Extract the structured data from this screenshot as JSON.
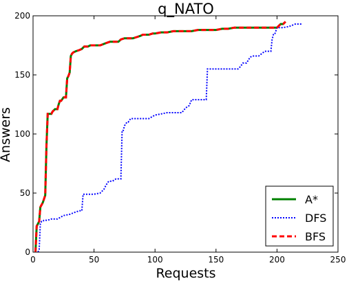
{
  "chart_data": {
    "type": "line",
    "title": "q_NATO",
    "xlabel": "Requests",
    "ylabel": "Answers",
    "xlim": [
      0,
      250
    ],
    "ylim": [
      0,
      200
    ],
    "xticks": [
      "0",
      "50",
      "100",
      "150",
      "200",
      "250"
    ],
    "yticks": [
      "0",
      "50",
      "100",
      "150",
      "200"
    ],
    "grid": false,
    "legend_position": "bottom-right",
    "series": [
      {
        "name": "A*",
        "color": "#008000",
        "style": "solid",
        "x": [
          2,
          3,
          5,
          6,
          8,
          10,
          11,
          12,
          13,
          15,
          16,
          18,
          20,
          21,
          22,
          23,
          25,
          27,
          28,
          29,
          30,
          31,
          32,
          33,
          35,
          38,
          40,
          42,
          45,
          47,
          50,
          55,
          60,
          63,
          65,
          68,
          70,
          72,
          75,
          78,
          80,
          82,
          85,
          88,
          90,
          92,
          95,
          98,
          100,
          105,
          110,
          115,
          120,
          125,
          130,
          135,
          140,
          145,
          150,
          155,
          160,
          165,
          170,
          175,
          180,
          185,
          190,
          195,
          200,
          203,
          205,
          207
        ],
        "y": [
          0,
          22,
          26,
          38,
          42,
          48,
          90,
          117,
          117,
          117,
          119,
          121,
          121,
          125,
          128,
          128,
          131,
          131,
          147,
          149,
          152,
          166,
          168,
          169,
          170,
          171,
          172,
          174,
          174,
          175,
          175,
          175,
          177,
          178,
          178,
          178,
          178,
          180,
          181,
          181,
          181,
          181,
          182,
          183,
          184,
          184,
          184,
          185,
          185,
          186,
          186,
          187,
          187,
          187,
          187,
          188,
          188,
          188,
          188,
          189,
          189,
          190,
          190,
          190,
          190,
          190,
          190,
          190,
          190,
          193,
          193,
          195
        ]
      },
      {
        "name": "DFS",
        "color": "#0000ff",
        "style": "dotted",
        "x": [
          4,
          5,
          6,
          7,
          8,
          9,
          10,
          12,
          15,
          20,
          25,
          30,
          35,
          38,
          40,
          41,
          45,
          50,
          55,
          58,
          60,
          62,
          65,
          68,
          70,
          72,
          73,
          74,
          75,
          77,
          78,
          80,
          82,
          85,
          90,
          95,
          100,
          105,
          110,
          115,
          120,
          122,
          125,
          128,
          130,
          135,
          140,
          141,
          142,
          143,
          145,
          150,
          155,
          160,
          165,
          168,
          170,
          172,
          175,
          178,
          180,
          185,
          190,
          195,
          196,
          197,
          198,
          200,
          205,
          210,
          215,
          220
        ],
        "y": [
          0,
          2,
          24,
          26,
          26,
          27,
          27,
          27,
          28,
          28,
          31,
          32,
          34,
          35,
          35,
          49,
          49,
          49,
          50,
          53,
          57,
          60,
          60,
          62,
          62,
          62,
          103,
          103,
          107,
          110,
          110,
          113,
          113,
          113,
          113,
          113,
          116,
          117,
          118,
          118,
          118,
          118,
          122,
          124,
          129,
          129,
          129,
          129,
          129,
          155,
          155,
          155,
          155,
          155,
          155,
          155,
          157,
          160,
          160,
          165,
          166,
          166,
          170,
          170,
          180,
          184,
          184,
          190,
          190,
          191,
          193,
          193
        ]
      },
      {
        "name": "BFS",
        "color": "#ff0000",
        "style": "dashed",
        "x": [
          2,
          3,
          5,
          6,
          8,
          10,
          11,
          12,
          13,
          15,
          16,
          18,
          20,
          21,
          22,
          23,
          25,
          27,
          28,
          29,
          30,
          31,
          32,
          33,
          35,
          38,
          40,
          42,
          45,
          47,
          50,
          55,
          60,
          63,
          65,
          68,
          70,
          72,
          75,
          78,
          80,
          82,
          85,
          88,
          90,
          92,
          95,
          98,
          100,
          105,
          110,
          115,
          120,
          125,
          130,
          135,
          140,
          145,
          150,
          155,
          160,
          165,
          170,
          175,
          180,
          185,
          190,
          195,
          200,
          203,
          205,
          207
        ],
        "y": [
          0,
          22,
          26,
          38,
          42,
          48,
          90,
          117,
          117,
          117,
          119,
          121,
          121,
          125,
          128,
          128,
          131,
          131,
          147,
          149,
          152,
          166,
          168,
          169,
          170,
          171,
          172,
          174,
          174,
          175,
          175,
          175,
          177,
          178,
          178,
          178,
          178,
          180,
          181,
          181,
          181,
          181,
          182,
          183,
          184,
          184,
          184,
          185,
          185,
          186,
          186,
          187,
          187,
          187,
          187,
          188,
          188,
          188,
          188,
          189,
          189,
          190,
          190,
          190,
          190,
          190,
          190,
          190,
          190,
          193,
          193,
          195
        ]
      }
    ]
  }
}
